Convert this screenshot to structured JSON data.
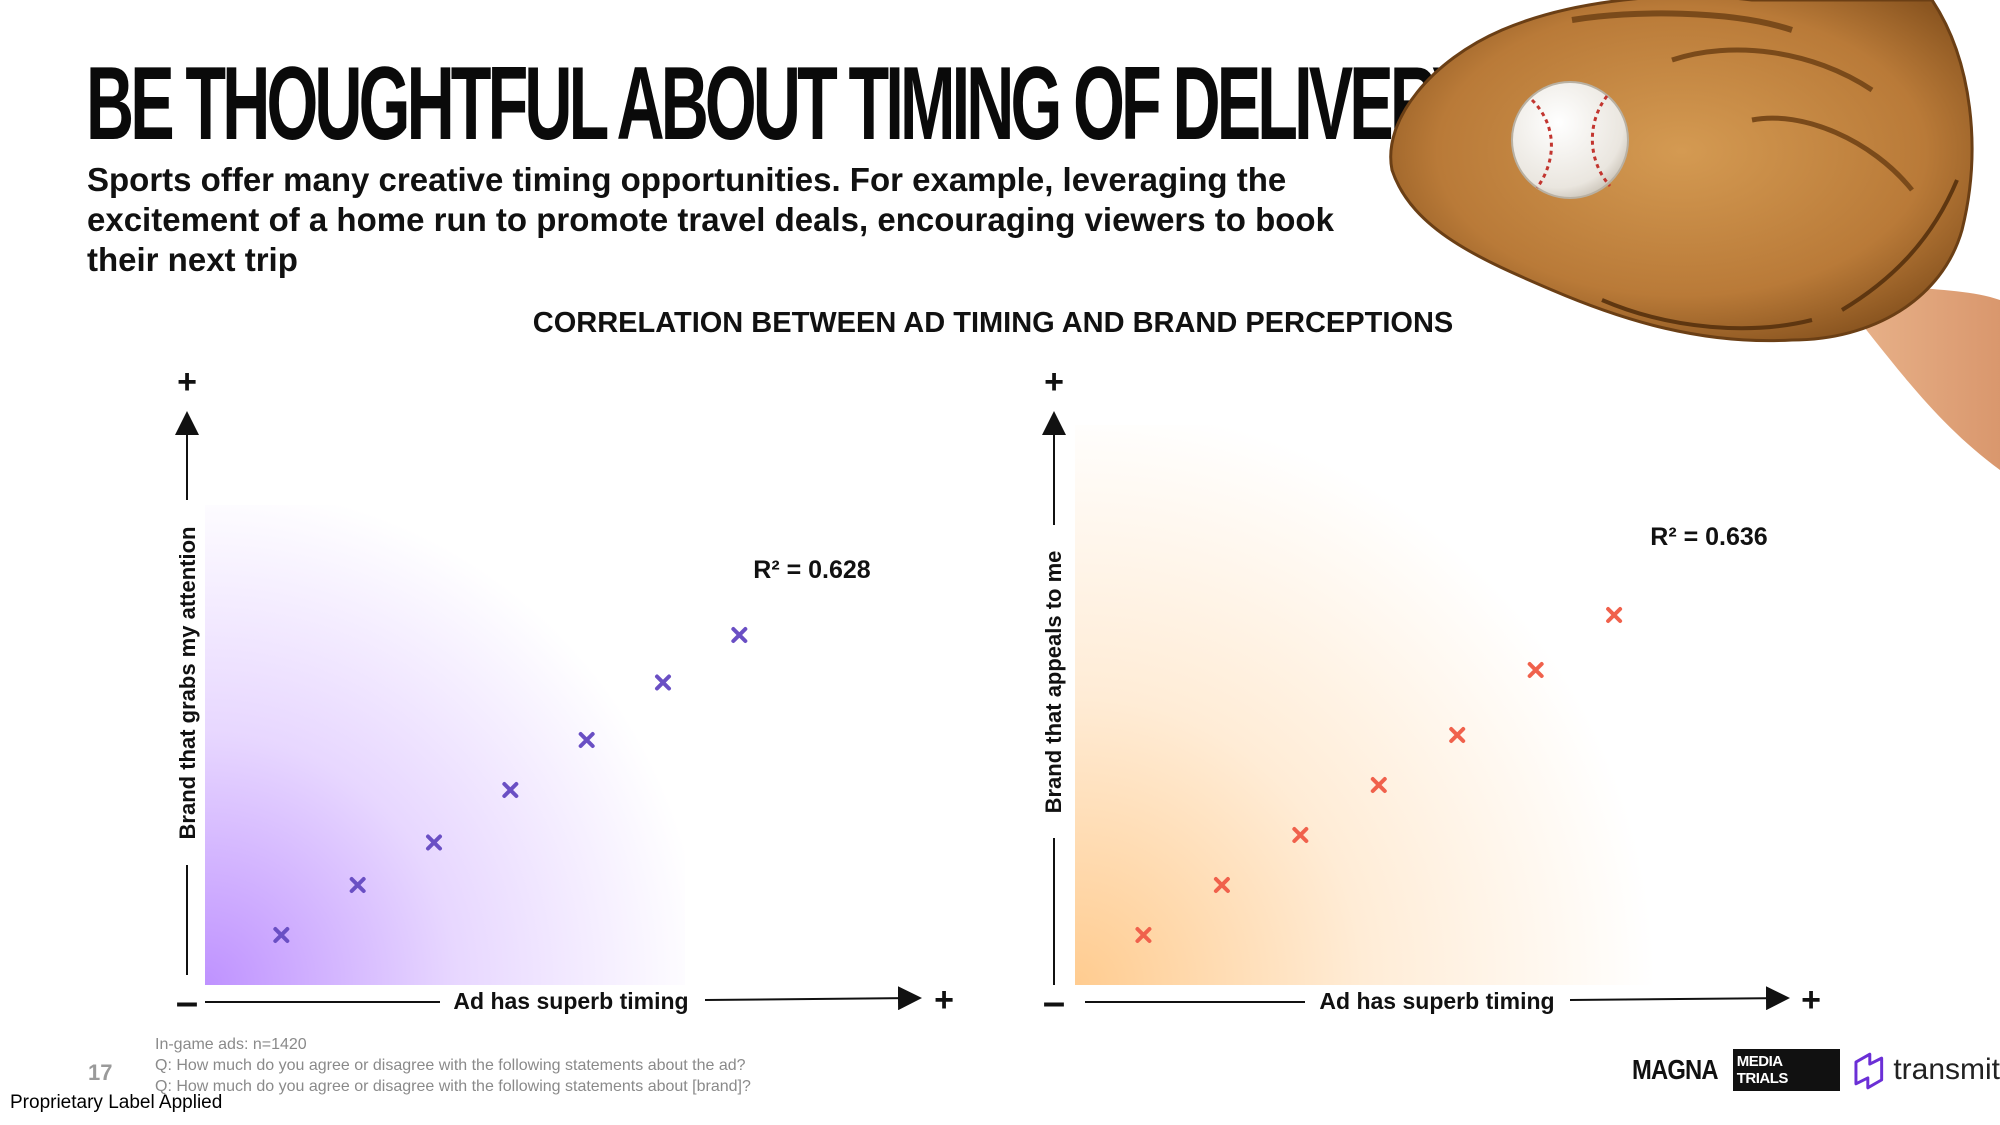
{
  "slide": {
    "title": "BE THOUGHTFUL ABOUT TIMING OF DELIVERY",
    "subtitle": "Sports offer many creative timing opportunities. For example, leveraging the excitement of a home run to promote travel deals, encouraging viewers to book their next trip",
    "chart_heading": "CORRELATION BETWEEN AD TIMING AND BRAND PERCEPTIONS",
    "footnotes": [
      "In-game ads: n=1420",
      "Q: How much do you agree or disagree with the following statements about the ad?",
      "Q: How much do you agree or disagree with the following statements about [brand]?"
    ],
    "page_number": "17",
    "proprietary_label": "Proprietary Label Applied",
    "logos": {
      "magna": "MAGNA",
      "media_trials": "MEDIA TRIALS",
      "transmit": "transmit"
    },
    "image": "baseball-glove-with-ball"
  },
  "chart_data": [
    {
      "type": "scatter",
      "xlabel": "Ad has superb timing",
      "ylabel": "Brand that grabs my attention",
      "axis_plus": "+",
      "axis_minus": "–",
      "annotation": "R² = 0.628",
      "marker": "x",
      "color": "#6a4fc4",
      "gradient_color": "#bb8cff",
      "points": [
        {
          "x": 1,
          "y": 1.0
        },
        {
          "x": 2,
          "y": 2.0
        },
        {
          "x": 3,
          "y": 2.85
        },
        {
          "x": 4,
          "y": 3.9
        },
        {
          "x": 5,
          "y": 4.9
        },
        {
          "x": 6,
          "y": 6.05
        },
        {
          "x": 7,
          "y": 7.0
        }
      ],
      "xlim": [
        0,
        9
      ],
      "ylim": [
        0,
        10
      ]
    },
    {
      "type": "scatter",
      "xlabel": "Ad has superb timing",
      "ylabel": "Brand that appeals to me",
      "axis_plus": "+",
      "axis_minus": "–",
      "annotation": "R² = 0.636",
      "marker": "x",
      "color": "#f0614c",
      "gradient_color": "#ffc98a",
      "points": [
        {
          "x": 1,
          "y": 1.0
        },
        {
          "x": 2,
          "y": 2.0
        },
        {
          "x": 3,
          "y": 3.0
        },
        {
          "x": 4,
          "y": 4.0
        },
        {
          "x": 5,
          "y": 5.0
        },
        {
          "x": 6,
          "y": 6.3
        },
        {
          "x": 7,
          "y": 7.4
        }
      ],
      "xlim": [
        0,
        9
      ],
      "ylim": [
        0,
        10
      ]
    }
  ]
}
